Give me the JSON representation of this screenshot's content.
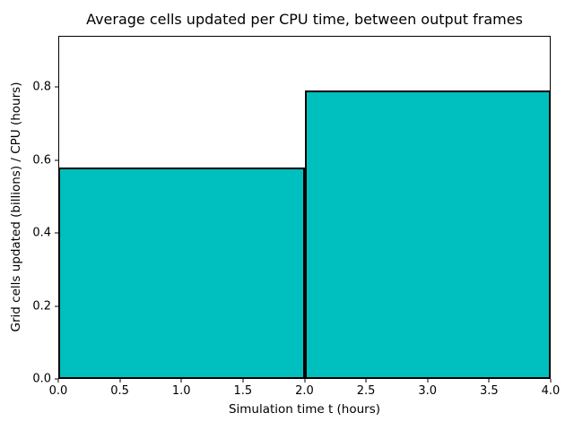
{
  "chart_data": {
    "type": "bar",
    "subtype": "histogram-step",
    "title": "Average cells updated per CPU time, between output frames",
    "xlabel": "Simulation time t (hours)",
    "ylabel": "Grid cells updated (billions) / CPU (hours)",
    "bin_edges": [
      0.0,
      2.0,
      4.0
    ],
    "values": [
      0.58,
      0.79
    ],
    "xlim": [
      0.0,
      4.0
    ],
    "ylim": [
      0.0,
      0.94
    ],
    "xtick_values": [
      0.0,
      0.5,
      1.0,
      1.5,
      2.0,
      2.5,
      3.0,
      3.5,
      4.0
    ],
    "xtick_labels": [
      "0.0",
      "0.5",
      "1.0",
      "1.5",
      "2.0",
      "2.5",
      "3.0",
      "3.5",
      "4.0"
    ],
    "ytick_values": [
      0.0,
      0.2,
      0.4,
      0.6,
      0.8
    ],
    "ytick_labels": [
      "0.0",
      "0.2",
      "0.4",
      "0.6",
      "0.8"
    ],
    "grid": false,
    "legend": null,
    "bar_color": "#00bfbf",
    "edge_color": "#000000",
    "background_color": "#ffffff"
  }
}
